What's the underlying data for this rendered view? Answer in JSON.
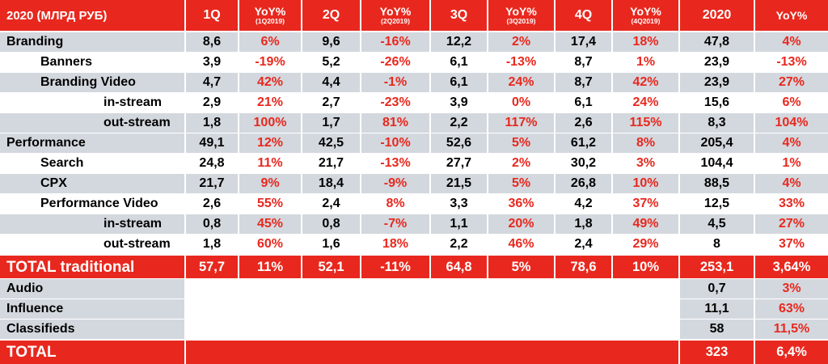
{
  "header": {
    "label": "2020 (МЛРД РУБ)",
    "q1": "1Q",
    "yoy1": "YoY%",
    "yoy1_sub": "(1Q2019)",
    "q2": "2Q",
    "yoy2": "YoY%",
    "yoy2_sub": "(2Q2019)",
    "q3": "3Q",
    "yoy3": "YoY%",
    "yoy3_sub": "(3Q2019)",
    "q4": "4Q",
    "yoy4": "YoY%",
    "yoy4_sub": "(4Q2019)",
    "year": "2020",
    "yoy_year": "YoY%"
  },
  "rows": [
    {
      "label": "Branding",
      "q1": "8,6",
      "y1": "6%",
      "q2": "9,6",
      "y2": "-16%",
      "q3": "12,2",
      "y3": "2%",
      "q4": "17,4",
      "y4": "18%",
      "year": "47,8",
      "yy": "4%"
    },
    {
      "label": "Banners",
      "q1": "3,9",
      "y1": "-19%",
      "q2": "5,2",
      "y2": "-26%",
      "q3": "6,1",
      "y3": "-13%",
      "q4": "8,7",
      "y4": "1%",
      "year": "23,9",
      "yy": "-13%"
    },
    {
      "label": "Branding Video",
      "q1": "4,7",
      "y1": "42%",
      "q2": "4,4",
      "y2": "-1%",
      "q3": "6,1",
      "y3": "24%",
      "q4": "8,7",
      "y4": "42%",
      "year": "23,9",
      "yy": "27%"
    },
    {
      "label": "in-stream",
      "q1": "2,9",
      "y1": "21%",
      "q2": "2,7",
      "y2": "-23%",
      "q3": "3,9",
      "y3": "0%",
      "q4": "6,1",
      "y4": "24%",
      "year": "15,6",
      "yy": "6%"
    },
    {
      "label": "out-stream",
      "q1": "1,8",
      "y1": "100%",
      "q2": "1,7",
      "y2": "81%",
      "q3": "2,2",
      "y3": "117%",
      "q4": "2,6",
      "y4": "115%",
      "year": "8,3",
      "yy": "104%"
    },
    {
      "label": "Performance",
      "q1": "49,1",
      "y1": "12%",
      "q2": "42,5",
      "y2": "-10%",
      "q3": "52,6",
      "y3": "5%",
      "q4": "61,2",
      "y4": "8%",
      "year": "205,4",
      "yy": "4%"
    },
    {
      "label": "Search",
      "q1": "24,8",
      "y1": "11%",
      "q2": "21,7",
      "y2": "-13%",
      "q3": "27,7",
      "y3": "2%",
      "q4": "30,2",
      "y4": "3%",
      "year": "104,4",
      "yy": "1%"
    },
    {
      "label": "CPX",
      "q1": "21,7",
      "y1": "9%",
      "q2": "18,4",
      "y2": "-9%",
      "q3": "21,5",
      "y3": "5%",
      "q4": "26,8",
      "y4": "10%",
      "year": "88,5",
      "yy": "4%"
    },
    {
      "label": "Performance Video",
      "q1": "2,6",
      "y1": "55%",
      "q2": "2,4",
      "y2": "8%",
      "q3": "3,3",
      "y3": "36%",
      "q4": "4,2",
      "y4": "37%",
      "year": "12,5",
      "yy": "33%"
    },
    {
      "label": "in-stream",
      "q1": "0,8",
      "y1": "45%",
      "q2": "0,8",
      "y2": "-7%",
      "q3": "1,1",
      "y3": "20%",
      "q4": "1,8",
      "y4": "49%",
      "year": "4,5",
      "yy": "27%"
    },
    {
      "label": "out-stream",
      "q1": "1,8",
      "y1": "60%",
      "q2": "1,6",
      "y2": "18%",
      "q3": "2,2",
      "y3": "46%",
      "q4": "2,4",
      "y4": "29%",
      "year": "8",
      "yy": "37%"
    }
  ],
  "total_traditional": {
    "label": "TOTAL traditional",
    "q1": "57,7",
    "y1": "11%",
    "q2": "52,1",
    "y2": "-11%",
    "q3": "64,8",
    "y3": "5%",
    "q4": "78,6",
    "y4": "10%",
    "year": "253,1",
    "yy": "3,64%"
  },
  "extras": [
    {
      "label": "Audio",
      "year": "0,7",
      "yy": "3%"
    },
    {
      "label": "Influence",
      "year": "11,1",
      "yy": "63%"
    },
    {
      "label": "Classifieds",
      "year": "58",
      "yy": "11,5%"
    }
  ],
  "total": {
    "label": "TOTAL",
    "year": "323",
    "yy": "6,4%"
  },
  "colors": {
    "accent_red": "#e8281e",
    "row_grey": "#d3d8de",
    "text": "#000000"
  }
}
